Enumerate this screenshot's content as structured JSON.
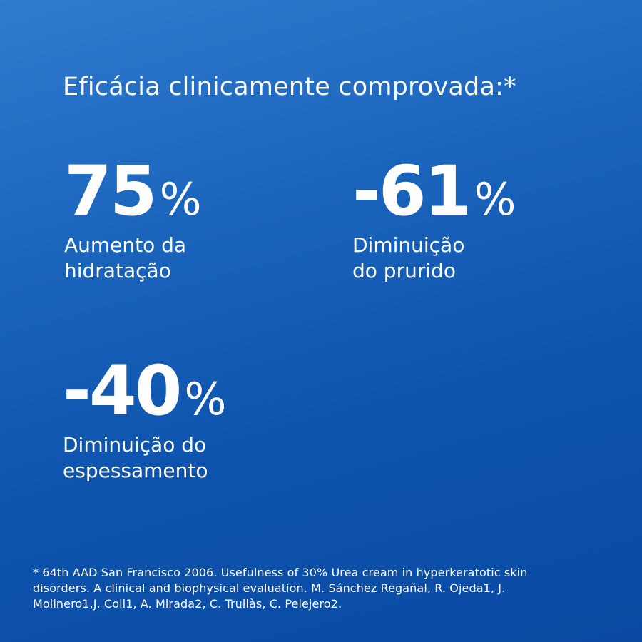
{
  "headline": "Eficácia clinicamente comprovada:*",
  "stats": [
    {
      "number": "75",
      "percent": "%",
      "caption_line1": "Aumento da",
      "caption_line2": "hidratação"
    },
    {
      "number": "-61",
      "percent": "%",
      "caption_line1": "Diminuição",
      "caption_line2": "do prurido"
    },
    {
      "number": "-40",
      "percent": "%",
      "caption_line1": "Diminuição do",
      "caption_line2": "espessamento"
    }
  ],
  "footnote": {
    "line1": "* 64th AAD San Francisco 2006. Usefulness of 30% Urea cream in hyperkeratotic skin",
    "line2": "disorders. A clinical and biophysical evaluation. M. Sánchez Regañal, R. Ojeda1, J.",
    "line3": "Molinero1,J. Coll1, A. Mirada2, C. Trullàs, C. Pelejero2."
  },
  "colors": {
    "background_top": "#2f7bcf",
    "background_bottom": "#0a4aa3",
    "text": "#ffffff"
  }
}
